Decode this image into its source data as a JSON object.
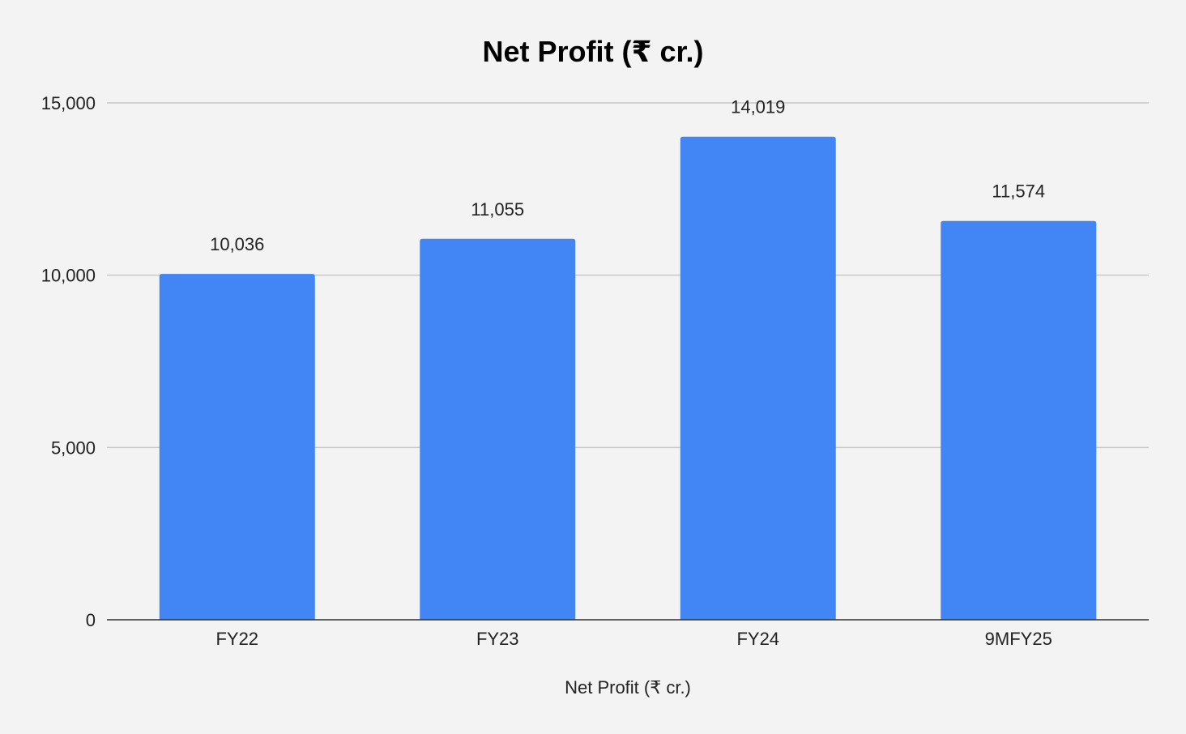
{
  "chart_data": {
    "type": "bar",
    "title": "Net Profit (₹ cr.)",
    "xlabel": "Net Profit (₹ cr.)",
    "ylabel": "",
    "categories": [
      "FY22",
      "FY23",
      "FY24",
      "9MFY25"
    ],
    "series": [
      {
        "values": [
          10036,
          11055,
          14019,
          11574
        ],
        "labels": [
          "10,036",
          "11,055",
          "14,019",
          "11,574"
        ],
        "color": "#4285f4"
      }
    ],
    "ylim": [
      0,
      15000
    ],
    "yticks": [
      0,
      5000,
      10000,
      15000
    ],
    "ytick_labels": [
      "0",
      "5,000",
      "10,000",
      "15,000"
    ],
    "grid": true,
    "legend": "none"
  },
  "colors": {
    "background": "#f3f3f3",
    "gridline": "#c8c8c8",
    "baseline": "#333333",
    "bar": "#4285f4"
  }
}
